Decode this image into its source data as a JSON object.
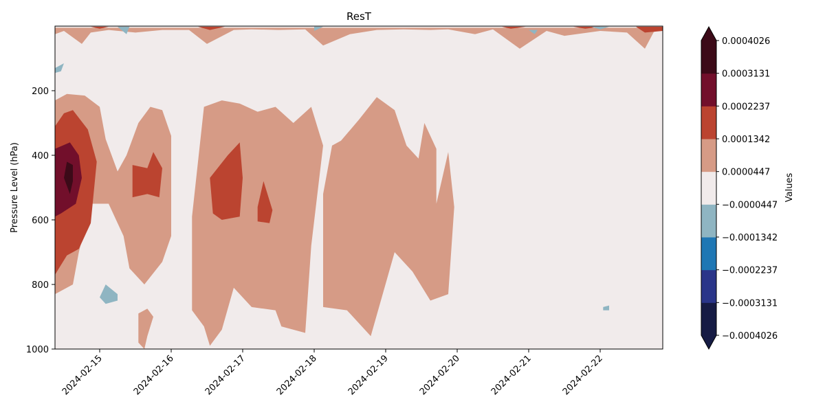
{
  "chart_data": {
    "type": "contourf",
    "title": "ResT",
    "xlabel": "",
    "ylabel": "Pressure Level (hPa)",
    "x_range": [
      "2024-02-14T09:00",
      "2024-02-22T21:00"
    ],
    "x_ticks": [
      "2024-02-15",
      "2024-02-16",
      "2024-02-17",
      "2024-02-18",
      "2024-02-19",
      "2024-02-20",
      "2024-02-21",
      "2024-02-22"
    ],
    "ylim": [
      1000,
      0
    ],
    "y_inverted": true,
    "y_ticks": [
      200,
      400,
      600,
      800,
      1000
    ],
    "colorbar": {
      "label": "Values",
      "extend": "both",
      "levels": [
        -0.0004026,
        -0.0003131,
        -0.0002237,
        -0.0001342,
        -4.47e-05,
        4.47e-05,
        0.0001342,
        0.0002237,
        0.0003131,
        0.0004026
      ],
      "tick_labels": [
        "−0.0004026",
        "−0.0003131",
        "−0.0002237",
        "−0.0001342",
        "−0.0000447",
        "0.0000447",
        "0.0001342",
        "0.0002237",
        "0.0003131",
        "0.0004026"
      ],
      "colors": [
        "#161b44",
        "#2a3589",
        "#1f77b4",
        "#8fb5c2",
        "#f1ebeb",
        "#d69b86",
        "#bb4430",
        "#720f2b",
        "#3c0a18"
      ]
    },
    "regions": [
      {
        "level_min": 4.47e-05,
        "level_max": 0.0001342,
        "polygon": [
          [
            "2024-02-14T09:00",
            230
          ],
          [
            "2024-02-14T13:00",
            210
          ],
          [
            "2024-02-14T19:00",
            215
          ],
          [
            "2024-02-15T00:00",
            250
          ],
          [
            "2024-02-15T02:00",
            350
          ],
          [
            "2024-02-15T06:00",
            450
          ],
          [
            "2024-02-15T09:00",
            400
          ],
          [
            "2024-02-15T13:00",
            300
          ],
          [
            "2024-02-15T17:00",
            250
          ],
          [
            "2024-02-15T21:00",
            260
          ],
          [
            "2024-02-16T00:00",
            340
          ],
          [
            "2024-02-16T00:00",
            650
          ],
          [
            "2024-02-15T21:00",
            730
          ],
          [
            "2024-02-15T15:00",
            800
          ],
          [
            "2024-02-15T10:00",
            750
          ],
          [
            "2024-02-15T08:00",
            650
          ],
          [
            "2024-02-15T03:00",
            550
          ],
          [
            "2024-02-14T21:00",
            550
          ],
          [
            "2024-02-14T17:00",
            700
          ],
          [
            "2024-02-14T15:00",
            800
          ],
          [
            "2024-02-14T09:00",
            830
          ]
        ]
      },
      {
        "level_min": 4.47e-05,
        "level_max": 0.0001342,
        "polygon": [
          [
            "2024-02-15T13:00",
            890
          ],
          [
            "2024-02-15T16:00",
            875
          ],
          [
            "2024-02-15T18:00",
            900
          ],
          [
            "2024-02-15T16:00",
            960
          ],
          [
            "2024-02-15T15:00",
            1000
          ],
          [
            "2024-02-15T13:00",
            980
          ]
        ]
      },
      {
        "level_min": 4.47e-05,
        "level_max": 0.0001342,
        "polygon": [
          [
            "2024-02-16T11:00",
            250
          ],
          [
            "2024-02-16T17:00",
            230
          ],
          [
            "2024-02-16T23:00",
            240
          ],
          [
            "2024-02-17T05:00",
            265
          ],
          [
            "2024-02-17T11:00",
            250
          ],
          [
            "2024-02-17T17:00",
            300
          ],
          [
            "2024-02-17T23:00",
            250
          ],
          [
            "2024-02-18T03:00",
            370
          ],
          [
            "2024-02-17T23:00",
            680
          ],
          [
            "2024-02-17T21:00",
            950
          ],
          [
            "2024-02-17T13:00",
            930
          ],
          [
            "2024-02-17T11:00",
            880
          ],
          [
            "2024-02-17T03:00",
            870
          ],
          [
            "2024-02-16T21:00",
            810
          ],
          [
            "2024-02-16T17:00",
            940
          ],
          [
            "2024-02-16T13:00",
            990
          ],
          [
            "2024-02-16T11:00",
            930
          ],
          [
            "2024-02-16T07:00",
            880
          ],
          [
            "2024-02-16T07:00",
            590
          ]
        ]
      },
      {
        "level_min": 4.47e-05,
        "level_max": 0.0001342,
        "polygon": [
          [
            "2024-02-18T06:00",
            370
          ],
          [
            "2024-02-18T09:00",
            355
          ],
          [
            "2024-02-18T15:00",
            290
          ],
          [
            "2024-02-18T21:00",
            220
          ],
          [
            "2024-02-19T03:00",
            260
          ],
          [
            "2024-02-19T07:00",
            370
          ],
          [
            "2024-02-19T11:00",
            410
          ],
          [
            "2024-02-19T13:00",
            300
          ],
          [
            "2024-02-19T17:00",
            380
          ],
          [
            "2024-02-19T17:00",
            550
          ],
          [
            "2024-02-19T21:00",
            390
          ],
          [
            "2024-02-19T23:00",
            560
          ],
          [
            "2024-02-19T21:00",
            830
          ],
          [
            "2024-02-19T15:00",
            850
          ],
          [
            "2024-02-19T09:00",
            760
          ],
          [
            "2024-02-19T03:00",
            700
          ],
          [
            "2024-02-18T19:00",
            960
          ],
          [
            "2024-02-18T11:00",
            880
          ],
          [
            "2024-02-18T03:00",
            870
          ],
          [
            "2024-02-18T03:00",
            520
          ]
        ]
      },
      {
        "level_min": 0.0001342,
        "level_max": 0.0002237,
        "polygon": [
          [
            "2024-02-14T09:00",
            310
          ],
          [
            "2024-02-14T12:00",
            270
          ],
          [
            "2024-02-14T15:00",
            260
          ],
          [
            "2024-02-14T20:00",
            320
          ],
          [
            "2024-02-14T23:00",
            420
          ],
          [
            "2024-02-14T21:00",
            610
          ],
          [
            "2024-02-14T17:00",
            690
          ],
          [
            "2024-02-14T13:00",
            710
          ],
          [
            "2024-02-14T09:00",
            770
          ]
        ]
      },
      {
        "level_min": 0.0001342,
        "level_max": 0.0002237,
        "polygon": [
          [
            "2024-02-15T11:00",
            430
          ],
          [
            "2024-02-15T16:00",
            440
          ],
          [
            "2024-02-15T18:00",
            390
          ],
          [
            "2024-02-15T21:00",
            440
          ],
          [
            "2024-02-15T20:00",
            530
          ],
          [
            "2024-02-15T16:00",
            520
          ],
          [
            "2024-02-15T11:00",
            530
          ]
        ]
      },
      {
        "level_min": 0.0001342,
        "level_max": 0.0002237,
        "polygon": [
          [
            "2024-02-16T13:00",
            470
          ],
          [
            "2024-02-16T19:00",
            400
          ],
          [
            "2024-02-16T23:00",
            360
          ],
          [
            "2024-02-17T00:00",
            470
          ],
          [
            "2024-02-16T23:00",
            590
          ],
          [
            "2024-02-16T17:00",
            600
          ],
          [
            "2024-02-16T14:00",
            580
          ]
        ]
      },
      {
        "level_min": 0.0001342,
        "level_max": 0.0002237,
        "polygon": [
          [
            "2024-02-17T05:00",
            560
          ],
          [
            "2024-02-17T07:00",
            480
          ],
          [
            "2024-02-17T10:00",
            570
          ],
          [
            "2024-02-17T09:00",
            610
          ],
          [
            "2024-02-17T05:00",
            605
          ]
        ]
      },
      {
        "level_min": 0.0002237,
        "level_max": 0.0003131,
        "polygon": [
          [
            "2024-02-14T09:00",
            380
          ],
          [
            "2024-02-14T14:00",
            360
          ],
          [
            "2024-02-14T17:00",
            400
          ],
          [
            "2024-02-14T18:00",
            470
          ],
          [
            "2024-02-14T16:00",
            550
          ],
          [
            "2024-02-14T11:00",
            580
          ],
          [
            "2024-02-14T09:00",
            590
          ]
        ]
      },
      {
        "level_min": 0.0003131,
        "level_max": 0.0004026,
        "polygon": [
          [
            "2024-02-14T12:00",
            470
          ],
          [
            "2024-02-14T13:00",
            420
          ],
          [
            "2024-02-14T15:00",
            430
          ],
          [
            "2024-02-14T15:00",
            480
          ],
          [
            "2024-02-14T14:00",
            520
          ]
        ]
      },
      {
        "level_min": -0.0001342,
        "level_max": -4.47e-05,
        "polygon": [
          [
            "2024-02-15T00:00",
            840
          ],
          [
            "2024-02-15T02:00",
            800
          ],
          [
            "2024-02-15T06:00",
            830
          ],
          [
            "2024-02-15T06:00",
            850
          ],
          [
            "2024-02-15T02:00",
            860
          ]
        ]
      },
      {
        "level_min": -0.0001342,
        "level_max": -4.47e-05,
        "polygon": [
          [
            "2024-02-14T09:00",
            130
          ],
          [
            "2024-02-14T12:00",
            115
          ],
          [
            "2024-02-14T11:00",
            140
          ],
          [
            "2024-02-14T09:00",
            145
          ]
        ]
      },
      {
        "level_min": -0.0001342,
        "level_max": -4.47e-05,
        "polygon": [
          [
            "2024-02-22T01:00",
            870
          ],
          [
            "2024-02-22T03:00",
            865
          ],
          [
            "2024-02-22T03:00",
            880
          ],
          [
            "2024-02-22T01:00",
            880
          ]
        ]
      },
      {
        "level_min": 4.47e-05,
        "level_max": 0.0001342,
        "polygon": [
          [
            "2024-02-14T09:00",
            5
          ],
          [
            "2024-02-22T21:00",
            5
          ],
          [
            "2024-02-22T21:00",
            12
          ],
          [
            "2024-02-22T18:00",
            18
          ],
          [
            "2024-02-22T15:00",
            70
          ],
          [
            "2024-02-22T12:00",
            45
          ],
          [
            "2024-02-22T09:00",
            20
          ],
          [
            "2024-02-22T00:00",
            15
          ],
          [
            "2024-02-21T12:00",
            30
          ],
          [
            "2024-02-21T06:00",
            15
          ],
          [
            "2024-02-20T21:00",
            70
          ],
          [
            "2024-02-20T15:00",
            30
          ],
          [
            "2024-02-20T12:00",
            10
          ],
          [
            "2024-02-20T06:00",
            25
          ],
          [
            "2024-02-19T21:00",
            10
          ],
          [
            "2024-02-19T15:00",
            12
          ],
          [
            "2024-02-19T06:00",
            10
          ],
          [
            "2024-02-18T21:00",
            12
          ],
          [
            "2024-02-18T12:00",
            25
          ],
          [
            "2024-02-18T03:00",
            60
          ],
          [
            "2024-02-17T21:00",
            10
          ],
          [
            "2024-02-17T12:00",
            12
          ],
          [
            "2024-02-17T03:00",
            10
          ],
          [
            "2024-02-16T21:00",
            12
          ],
          [
            "2024-02-16T12:00",
            55
          ],
          [
            "2024-02-16T06:00",
            12
          ],
          [
            "2024-02-15T21:00",
            12
          ],
          [
            "2024-02-15T12:00",
            20
          ],
          [
            "2024-02-15T03:00",
            12
          ],
          [
            "2024-02-14T21:00",
            20
          ],
          [
            "2024-02-14T18:00",
            55
          ],
          [
            "2024-02-14T12:00",
            15
          ],
          [
            "2024-02-14T09:00",
            25
          ]
        ]
      },
      {
        "level_min": 0.0001342,
        "level_max": 0.0002237,
        "polygon": [
          [
            "2024-02-14T21:00",
            2
          ],
          [
            "2024-02-15T03:00",
            2
          ],
          [
            "2024-02-15T00:00",
            8
          ]
        ]
      },
      {
        "level_min": 0.0001342,
        "level_max": 0.0002237,
        "polygon": [
          [
            "2024-02-16T09:00",
            2
          ],
          [
            "2024-02-16T18:00",
            2
          ],
          [
            "2024-02-16T13:00",
            12
          ]
        ]
      },
      {
        "level_min": 0.0001342,
        "level_max": 0.0002237,
        "polygon": [
          [
            "2024-02-20T15:00",
            2
          ],
          [
            "2024-02-20T23:00",
            2
          ],
          [
            "2024-02-20T18:00",
            8
          ]
        ]
      },
      {
        "level_min": 0.0001342,
        "level_max": 0.0002237,
        "polygon": [
          [
            "2024-02-21T15:00",
            2
          ],
          [
            "2024-02-22T00:00",
            2
          ],
          [
            "2024-02-21T19:00",
            8
          ]
        ]
      },
      {
        "level_min": 0.0001342,
        "level_max": 0.0002237,
        "polygon": [
          [
            "2024-02-22T12:00",
            2
          ],
          [
            "2024-02-22T21:00",
            2
          ],
          [
            "2024-02-22T21:00",
            15
          ],
          [
            "2024-02-22T15:00",
            20
          ]
        ]
      },
      {
        "level_min": -0.0001342,
        "level_max": -4.47e-05,
        "polygon": [
          [
            "2024-02-15T06:00",
            2
          ],
          [
            "2024-02-15T10:00",
            2
          ],
          [
            "2024-02-15T09:00",
            25
          ]
        ]
      },
      {
        "level_min": -0.0001342,
        "level_max": -4.47e-05,
        "polygon": [
          [
            "2024-02-18T00:00",
            2
          ],
          [
            "2024-02-18T03:00",
            2
          ],
          [
            "2024-02-18T00:00",
            15
          ]
        ]
      },
      {
        "level_min": -0.0001342,
        "level_max": -4.47e-05,
        "polygon": [
          [
            "2024-02-21T00:00",
            12
          ],
          [
            "2024-02-21T03:00",
            12
          ],
          [
            "2024-02-21T02:00",
            25
          ]
        ]
      },
      {
        "level_min": -0.0001342,
        "level_max": -4.47e-05,
        "polygon": [
          [
            "2024-02-21T21:00",
            2
          ],
          [
            "2024-02-22T03:00",
            2
          ],
          [
            "2024-02-22T00:00",
            10
          ]
        ]
      }
    ]
  }
}
